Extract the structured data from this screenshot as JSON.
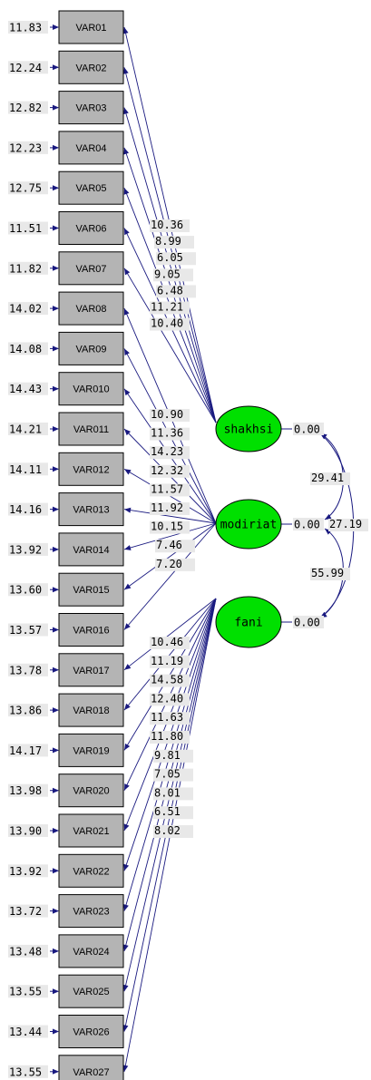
{
  "indicators": [
    {
      "name": "VAR01",
      "error": "11.83"
    },
    {
      "name": "VAR02",
      "error": "12.24"
    },
    {
      "name": "VAR03",
      "error": "12.82"
    },
    {
      "name": "VAR04",
      "error": "12.23"
    },
    {
      "name": "VAR05",
      "error": "12.75"
    },
    {
      "name": "VAR06",
      "error": "11.51"
    },
    {
      "name": "VAR07",
      "error": "11.82"
    },
    {
      "name": "VAR08",
      "error": "14.02"
    },
    {
      "name": "VAR09",
      "error": "14.08"
    },
    {
      "name": "VAR010",
      "error": "14.43"
    },
    {
      "name": "VAR011",
      "error": "14.21"
    },
    {
      "name": "VAR012",
      "error": "14.11"
    },
    {
      "name": "VAR013",
      "error": "14.16"
    },
    {
      "name": "VAR014",
      "error": "13.92"
    },
    {
      "name": "VAR015",
      "error": "13.60"
    },
    {
      "name": "VAR016",
      "error": "13.57"
    },
    {
      "name": "VAR017",
      "error": "13.78"
    },
    {
      "name": "VAR018",
      "error": "13.86"
    },
    {
      "name": "VAR019",
      "error": "14.17"
    },
    {
      "name": "VAR020",
      "error": "13.98"
    },
    {
      "name": "VAR021",
      "error": "13.90"
    },
    {
      "name": "VAR022",
      "error": "13.92"
    },
    {
      "name": "VAR023",
      "error": "13.72"
    },
    {
      "name": "VAR024",
      "error": "13.48"
    },
    {
      "name": "VAR025",
      "error": "13.55"
    },
    {
      "name": "VAR026",
      "error": "13.44"
    },
    {
      "name": "VAR027",
      "error": "13.55"
    }
  ],
  "latents": [
    {
      "name": "shakhsi",
      "variance": "0.00"
    },
    {
      "name": "modiriat",
      "variance": "0.00"
    },
    {
      "name": "fani",
      "variance": "0.00"
    }
  ],
  "loadings": {
    "shakhsi": [
      "10.36",
      "8.99",
      "6.05",
      "9.05",
      "6.48",
      "11.21",
      "10.40"
    ],
    "modiriat": [
      "10.90",
      "11.36",
      "14.23",
      "12.32",
      "11.57",
      "11.92",
      "10.15",
      "7.46",
      "7.20"
    ],
    "fani": [
      "10.46",
      "11.19",
      "14.58",
      "12.40",
      "11.63",
      "11.80",
      "9.81",
      "7.05",
      "8.01",
      "6.51",
      "8.02"
    ]
  },
  "covariances": [
    {
      "between": [
        "shakhsi",
        "modiriat"
      ],
      "value": "29.41"
    },
    {
      "between": [
        "shakhsi",
        "fani"
      ],
      "value": "27.19"
    },
    {
      "between": [
        "modiriat",
        "fani"
      ],
      "value": "55.99"
    }
  ],
  "colors": {
    "latent_fill": "#00e000",
    "indicator_fill": "#b4b4b4",
    "path": "#1a1a80"
  }
}
